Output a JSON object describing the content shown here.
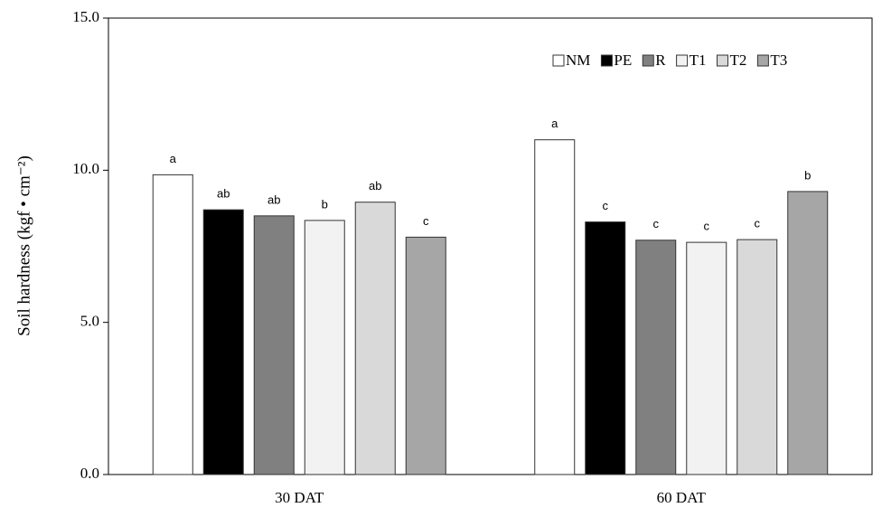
{
  "chart_data": {
    "type": "bar",
    "y_label": "Soil hardness (kgf • cm⁻²)",
    "categories": [
      "30 DAT",
      "60 DAT"
    ],
    "series": [
      {
        "name": "NM",
        "color": "#ffffff",
        "values": [
          9.85,
          11.0
        ],
        "letters": [
          "a",
          "a"
        ]
      },
      {
        "name": "PE",
        "color": "#000000",
        "values": [
          8.7,
          8.3
        ],
        "letters": [
          "ab",
          "c"
        ]
      },
      {
        "name": "R",
        "color": "#808080",
        "values": [
          8.5,
          7.7
        ],
        "letters": [
          "ab",
          "c"
        ]
      },
      {
        "name": "T1",
        "color": "#f2f2f2",
        "values": [
          8.35,
          7.63
        ],
        "letters": [
          "b",
          "c"
        ]
      },
      {
        "name": "T2",
        "color": "#d9d9d9",
        "values": [
          8.95,
          7.72
        ],
        "letters": [
          "ab",
          "c"
        ]
      },
      {
        "name": "T3",
        "color": "#a6a6a6",
        "values": [
          7.8,
          9.3
        ],
        "letters": [
          "c",
          "b"
        ]
      }
    ],
    "ylim": [
      0,
      15
    ],
    "yticks": [
      {
        "value": 0,
        "label": "0.0"
      },
      {
        "value": 5,
        "label": "5.0"
      },
      {
        "value": 10,
        "label": "10.0"
      },
      {
        "value": 15,
        "label": "15.0"
      }
    ],
    "grid": false,
    "legend": "top-right"
  }
}
